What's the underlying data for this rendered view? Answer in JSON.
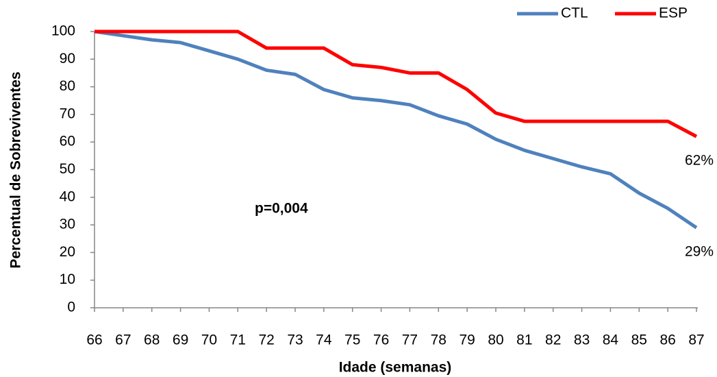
{
  "chart_data": {
    "type": "line",
    "xlabel": "Idade (semanas)",
    "ylabel": "Percentual de Sobreviventes",
    "annotations": [
      "p=0,004"
    ],
    "x": [
      66,
      67,
      68,
      69,
      70,
      71,
      72,
      73,
      74,
      75,
      76,
      77,
      78,
      79,
      80,
      81,
      82,
      83,
      84,
      85,
      86,
      87
    ],
    "series": [
      {
        "name": "CTL",
        "color": "#4f81bd",
        "values": [
          100,
          98.5,
          97,
          96,
          93,
          90,
          86,
          84.5,
          79,
          76,
          75,
          73.5,
          69.5,
          66.5,
          61,
          57,
          54,
          51,
          48.5,
          41.5,
          36,
          29
        ],
        "value_labels": [
          null,
          null,
          null,
          null,
          null,
          null,
          null,
          null,
          null,
          null,
          null,
          null,
          null,
          null,
          null,
          null,
          null,
          null,
          null,
          null,
          null,
          "29%"
        ]
      },
      {
        "name": "ESP",
        "color": "#ff0000",
        "values": [
          100,
          100,
          100,
          100,
          100,
          100,
          94,
          94,
          94,
          88,
          87,
          85,
          85,
          79,
          70.5,
          67.5,
          67.5,
          67.5,
          67.5,
          67.5,
          67.5,
          62
        ],
        "value_labels": [
          null,
          null,
          null,
          null,
          null,
          null,
          null,
          null,
          null,
          null,
          null,
          null,
          null,
          null,
          null,
          null,
          null,
          null,
          null,
          null,
          null,
          "62%"
        ]
      }
    ],
    "xlim": [
      66,
      87
    ],
    "xticks": [
      66,
      67,
      68,
      69,
      70,
      71,
      72,
      73,
      74,
      75,
      76,
      77,
      78,
      79,
      80,
      81,
      82,
      83,
      84,
      85,
      86,
      87
    ],
    "ylim": [
      0,
      100
    ],
    "yticks": [
      0,
      10,
      20,
      30,
      40,
      50,
      60,
      70,
      80,
      90,
      100
    ],
    "grid": false,
    "legend": "top-right"
  }
}
